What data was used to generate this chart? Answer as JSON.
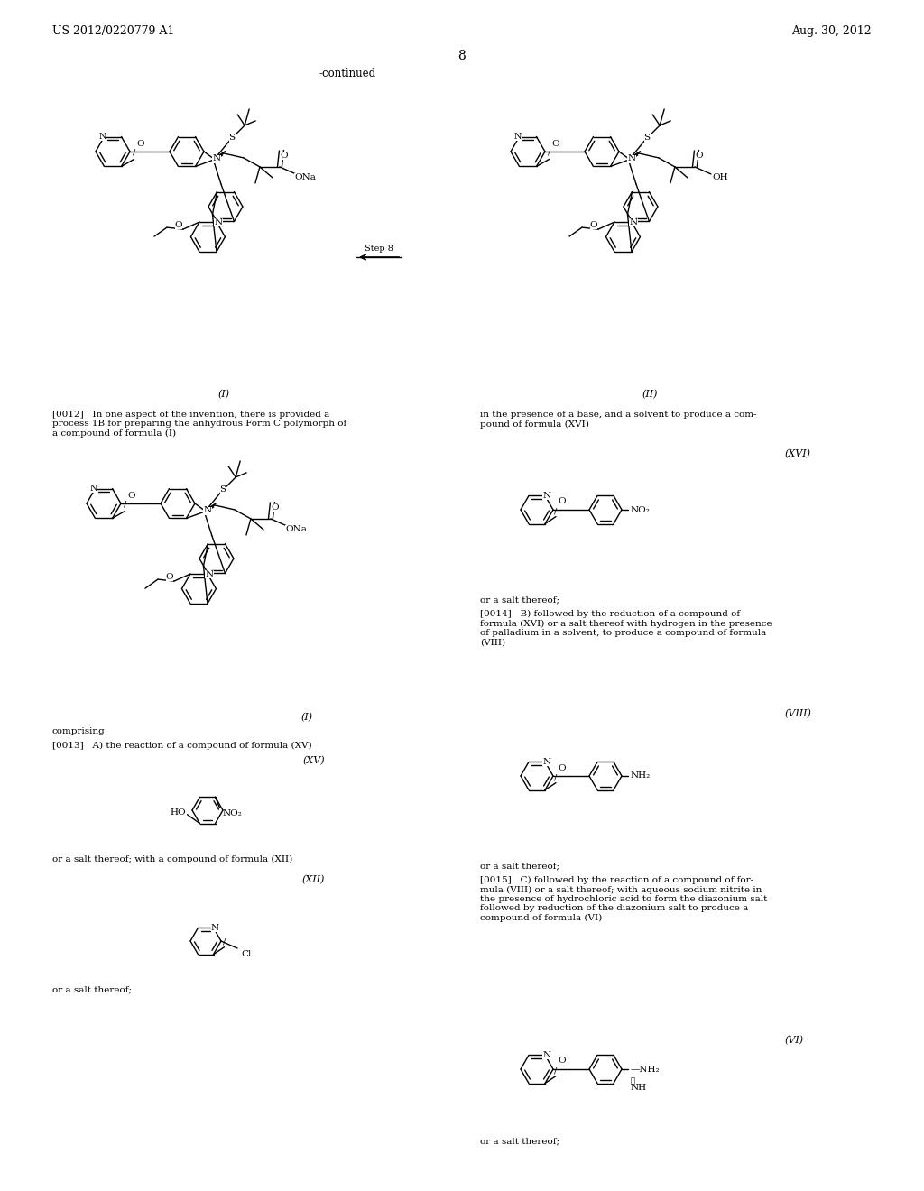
{
  "background_color": "#ffffff",
  "header_left": "US 2012/0220779 A1",
  "header_right": "Aug. 30, 2012",
  "page_number": "8",
  "continued_label": "-continued",
  "para_0012_left": "[0012]   In one aspect of the invention, there is provided a\nprocess 1B for preparing the anhydrous Form C polymorph of\na compound of formula (I)",
  "para_0012_right": "in the presence of a base, and a solvent to produce a com-\npound of formula (XVI)",
  "para_comprising": "comprising",
  "para_0013": "[0013]   A) the reaction of a compound of formula (XV)",
  "para_salt_xv": "or a salt thereof; with a compound of formula (XII)",
  "para_salt_left_bottom": "or a salt thereof;",
  "para_salt_xvi": "or a salt thereof;",
  "para_0014": "[0014]   B) followed by the reduction of a compound of\nformula (XVI) or a salt thereof with hydrogen in the presence\nof palladium in a solvent, to produce a compound of formula\n(VIII)",
  "para_salt_viii": "or a salt thereof;",
  "para_0015": "[0015]   C) followed by the reaction of a compound of for-\nmula (VIII) or a salt thereof; with aqueous sodium nitrite in\nthe presence of hydrochloric acid to form the diazonium salt\nfollowed by reduction of the diazonium salt to produce a\ncompound of formula (VI)",
  "para_salt_vi_right": "or a salt thereof;",
  "label_I_top": "(I)",
  "label_II_top": "(II)",
  "label_I_mid": "(I)",
  "label_XVI": "(XVI)",
  "label_XV": "(XV)",
  "label_XII": "(XII)",
  "label_VIII": "(VIII)",
  "label_VI": "(VI)"
}
